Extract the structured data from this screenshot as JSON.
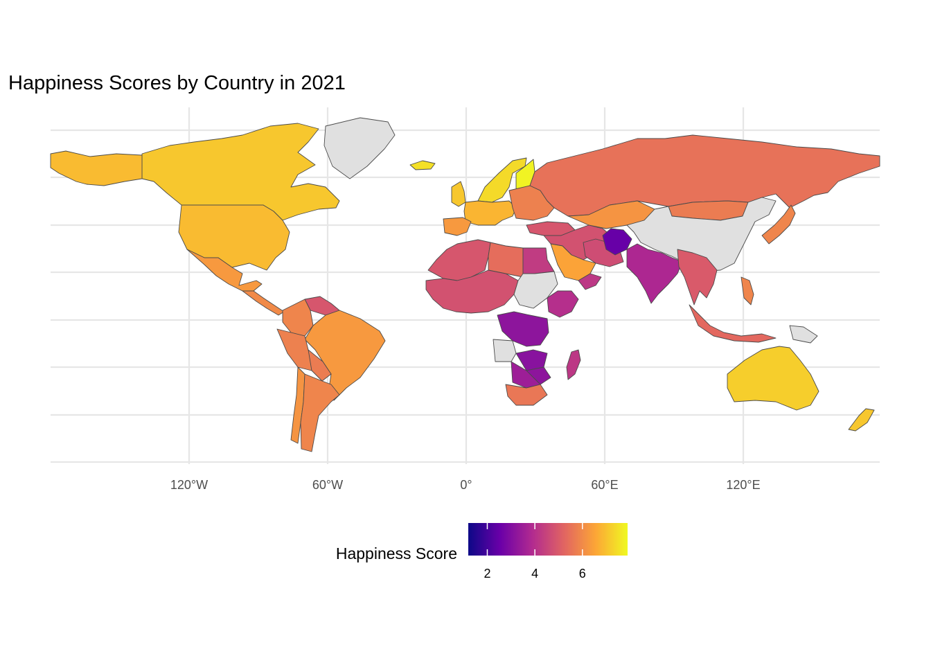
{
  "title": "Happiness Scores by Country in 2021",
  "axis": {
    "x_ticks": [
      {
        "lon": -120,
        "label": "120°W"
      },
      {
        "lon": -60,
        "label": "60°W"
      },
      {
        "lon": 0,
        "label": "0°"
      },
      {
        "lon": 60,
        "label": "60°E"
      },
      {
        "lon": 120,
        "label": "120°E"
      }
    ],
    "lon_range": [
      -180,
      180
    ],
    "lat_range": [
      -56,
      84
    ]
  },
  "legend": {
    "title": "Happiness Score",
    "ticks": [
      {
        "value": 2,
        "label": "2"
      },
      {
        "value": 4,
        "label": "4"
      },
      {
        "value": 6,
        "label": "6"
      }
    ],
    "range": [
      1.2,
      7.9
    ],
    "colors": [
      "#0d0887",
      "#6a00a8",
      "#b12a90",
      "#e16462",
      "#fca636",
      "#f0f921"
    ],
    "missing_color": "#e0e0e0"
  },
  "chart_data": {
    "type": "choropleth",
    "title": "Happiness Scores by Country in 2021",
    "legend_title": "Happiness Score",
    "grid": true,
    "legend_position": "bottom",
    "regions": [
      {
        "name": "Canada",
        "score": 7.1
      },
      {
        "name": "United States",
        "score": 6.9
      },
      {
        "name": "Mexico",
        "score": 6.3
      },
      {
        "name": "Greenland",
        "score": null
      },
      {
        "name": "Alaska",
        "score": 6.9
      },
      {
        "name": "Central America",
        "score": 6.0
      },
      {
        "name": "Venezuela",
        "score": 4.9
      },
      {
        "name": "Colombia",
        "score": 5.9
      },
      {
        "name": "Brazil",
        "score": 6.3
      },
      {
        "name": "Peru",
        "score": 5.8
      },
      {
        "name": "Bolivia",
        "score": 5.7
      },
      {
        "name": "Chile",
        "score": 6.2
      },
      {
        "name": "Argentina",
        "score": 5.9
      },
      {
        "name": "Iceland",
        "score": 7.5
      },
      {
        "name": "Norway/Sweden",
        "score": 7.4
      },
      {
        "name": "Finland",
        "score": 7.8
      },
      {
        "name": "United Kingdom",
        "score": 7.1
      },
      {
        "name": "Western Europe",
        "score": 6.8
      },
      {
        "name": "Spain/Portugal",
        "score": 6.3
      },
      {
        "name": "Eastern Europe",
        "score": 5.8
      },
      {
        "name": "Russia",
        "score": 5.5
      },
      {
        "name": "Kazakhstan",
        "score": 6.2
      },
      {
        "name": "Mongolia",
        "score": 5.7
      },
      {
        "name": "China",
        "score": null
      },
      {
        "name": "Japan",
        "score": 5.9
      },
      {
        "name": "Turkey",
        "score": 4.9
      },
      {
        "name": "Middle East",
        "score": 4.8
      },
      {
        "name": "Saudi Arabia",
        "score": 6.5
      },
      {
        "name": "Iran",
        "score": 4.7
      },
      {
        "name": "Afghanistan",
        "score": 2.5
      },
      {
        "name": "India",
        "score": 3.8
      },
      {
        "name": "Southeast Asia",
        "score": 5.0
      },
      {
        "name": "Indonesia",
        "score": 5.3
      },
      {
        "name": "Philippines",
        "score": 5.9
      },
      {
        "name": "Australia",
        "score": 7.2
      },
      {
        "name": "New Zealand",
        "score": 7.1
      },
      {
        "name": "Papua New Guinea",
        "score": null
      },
      {
        "name": "North Africa",
        "score": 4.9
      },
      {
        "name": "Libya",
        "score": 5.4
      },
      {
        "name": "Egypt",
        "score": 4.3
      },
      {
        "name": "West Africa",
        "score": 4.8
      },
      {
        "name": "Sudan",
        "score": null
      },
      {
        "name": "Ethiopia",
        "score": 4.0
      },
      {
        "name": "Yemen",
        "score": 4.2
      },
      {
        "name": "DR Congo",
        "score": 3.2
      },
      {
        "name": "Angola",
        "score": null
      },
      {
        "name": "Zambia",
        "score": 3.1
      },
      {
        "name": "Zimbabwe",
        "score": 3.2
      },
      {
        "name": "Botswana",
        "score": 3.5
      },
      {
        "name": "South Africa",
        "score": 5.6
      },
      {
        "name": "Madagascar",
        "score": 4.2
      }
    ]
  }
}
